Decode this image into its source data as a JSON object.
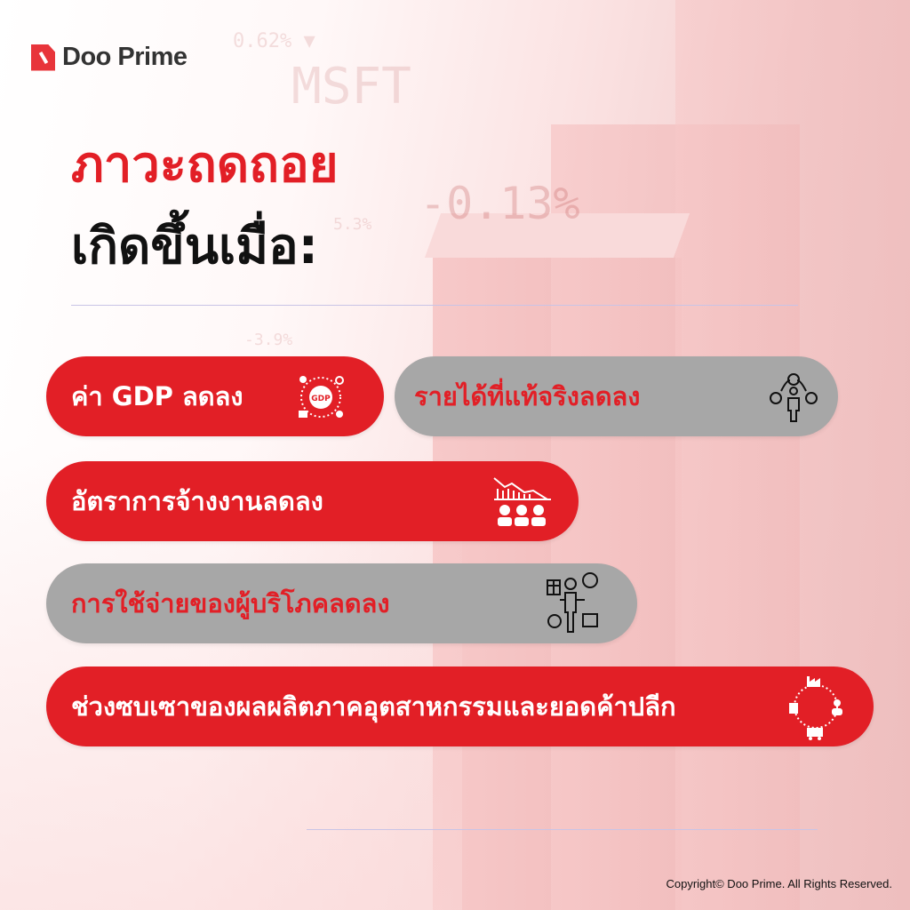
{
  "brand": {
    "name": "Doo Prime"
  },
  "background_text": [
    "0.62% ▼",
    "MSFT",
    "-0.13%",
    "5.3%",
    "-3.9%"
  ],
  "heading": {
    "line1": "ภาวะถดถอย",
    "line2": "เกิดขึ้นเมื่อ:"
  },
  "items": [
    {
      "label": "ค่า GDP ลดลง",
      "style": "red",
      "icon": "gdp-globe-icon"
    },
    {
      "label": "รายได้ที่แท้จริงลดลง",
      "style": "gray",
      "icon": "person-money-icon"
    },
    {
      "label": "อัตราการจ้างงานลดลง",
      "style": "red",
      "icon": "employment-decline-icon"
    },
    {
      "label": "การใช้จ่ายของผู้บริโภคลดลง",
      "style": "gray",
      "icon": "consumer-spending-icon"
    },
    {
      "label": "ช่วงซบเซาของผลผลิตภาคอุตสาหกรรมและยอดค้าปลีก",
      "style": "red",
      "icon": "industry-retail-cycle-icon"
    }
  ],
  "colors": {
    "red": "#e21f26",
    "gray": "#a7a7a7"
  },
  "footer": {
    "copyright": "Copyright© Doo Prime. All Rights Reserved."
  }
}
